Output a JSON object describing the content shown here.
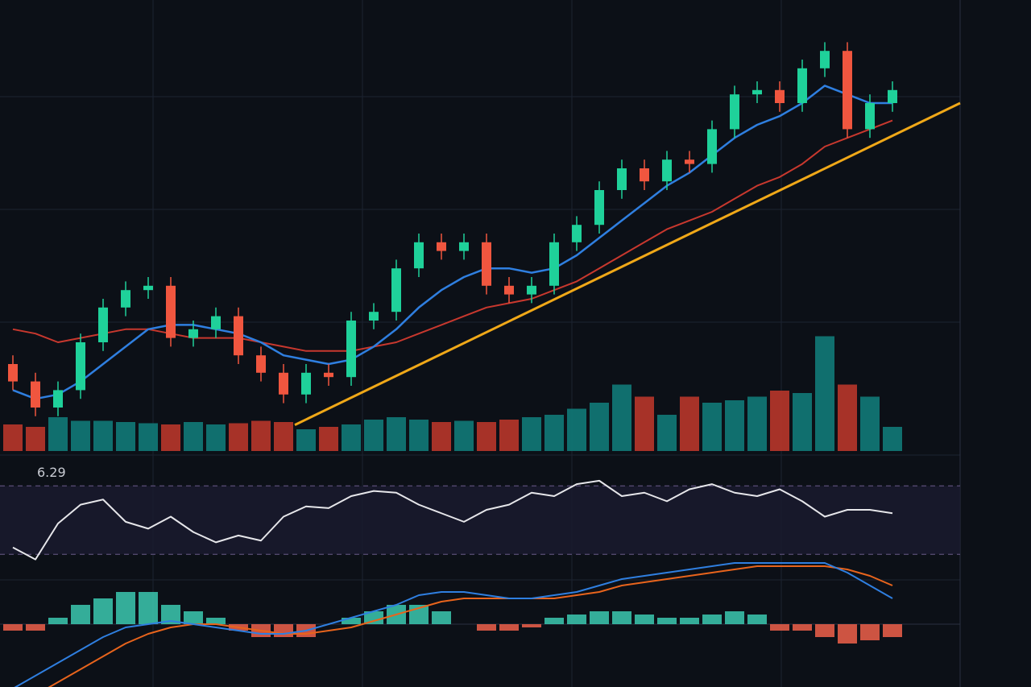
{
  "chart_data": {
    "type": "candlestick",
    "label": "6.29",
    "open": [
      20,
      16,
      10,
      14,
      25,
      33,
      37,
      38,
      26,
      28,
      31,
      22,
      18,
      13,
      18,
      17,
      30,
      32,
      42,
      48,
      46,
      48,
      38,
      36,
      38,
      48,
      52,
      60,
      65,
      62,
      67,
      66,
      74,
      82,
      83,
      80,
      88,
      92,
      74,
      80
    ],
    "high": [
      22,
      18,
      16,
      27,
      35,
      39,
      40,
      40,
      30,
      33,
      33,
      24,
      20,
      20,
      20,
      32,
      34,
      44,
      50,
      50,
      50,
      50,
      40,
      40,
      50,
      54,
      62,
      67,
      67,
      69,
      69,
      76,
      84,
      85,
      85,
      90,
      94,
      94,
      82,
      85
    ],
    "low": [
      14,
      8,
      8,
      12,
      23,
      31,
      35,
      24,
      24,
      26,
      20,
      16,
      11,
      11,
      15,
      15,
      28,
      30,
      40,
      44,
      44,
      36,
      34,
      34,
      36,
      46,
      50,
      58,
      60,
      60,
      64,
      64,
      72,
      80,
      78,
      78,
      86,
      72,
      72,
      78
    ],
    "close": [
      16,
      10,
      14,
      25,
      33,
      37,
      38,
      26,
      28,
      31,
      22,
      18,
      13,
      18,
      17,
      30,
      32,
      42,
      48,
      46,
      48,
      38,
      36,
      38,
      48,
      52,
      60,
      65,
      62,
      67,
      66,
      74,
      82,
      83,
      80,
      88,
      92,
      74,
      80,
      83
    ],
    "ylim": [
      0,
      100
    ],
    "up_color": "#1fd19a",
    "down_color": "#f0563f",
    "ma_fast": {
      "color": "#2f7fe0",
      "values": [
        14,
        12,
        13,
        16,
        20,
        24,
        28,
        29,
        29,
        28,
        27,
        25,
        22,
        21,
        20,
        21,
        24,
        28,
        33,
        37,
        40,
        42,
        42,
        41,
        42,
        45,
        49,
        53,
        57,
        61,
        64,
        68,
        72,
        75,
        77,
        80,
        84,
        82,
        80,
        80
      ]
    },
    "ma_slow": {
      "color": "#c8382e",
      "values": [
        28,
        27,
        25,
        26,
        27,
        28,
        28,
        27,
        26,
        26,
        26,
        25,
        24,
        23,
        23,
        23,
        24,
        25,
        27,
        29,
        31,
        33,
        34,
        35,
        37,
        39,
        42,
        45,
        48,
        51,
        53,
        55,
        58,
        61,
        63,
        66,
        70,
        72,
        74,
        76
      ]
    },
    "trendline": {
      "color": "#f0a818",
      "x": [
        12.5,
        42
      ],
      "values": [
        6,
        80
      ]
    },
    "volume": {
      "ylim": [
        0,
        100
      ],
      "values": [
        22,
        20,
        28,
        25,
        25,
        24,
        23,
        22,
        24,
        22,
        23,
        25,
        24,
        18,
        20,
        22,
        26,
        28,
        26,
        24,
        25,
        24,
        26,
        28,
        30,
        35,
        40,
        55,
        45,
        30,
        45,
        40,
        42,
        45,
        50,
        48,
        95,
        55,
        45,
        20
      ]
    },
    "rsi": {
      "ylim": [
        0,
        100
      ],
      "levels": [
        30,
        70
      ],
      "color": "#e6e6ea",
      "values": [
        34,
        27,
        48,
        59,
        62,
        49,
        45,
        52,
        43,
        37,
        41,
        38,
        52,
        58,
        57,
        64,
        67,
        66,
        59,
        54,
        49,
        56,
        59,
        66,
        64,
        71,
        73,
        64,
        66,
        61,
        68,
        71,
        66,
        64,
        68,
        61,
        52,
        56,
        56,
        54
      ]
    },
    "macd": {
      "ylim": [
        -10,
        10
      ],
      "histogram": [
        -1,
        -1,
        1,
        3,
        4,
        5,
        5,
        3,
        2,
        1,
        -1,
        -2,
        -2,
        -2,
        0,
        1,
        2,
        3,
        3,
        2,
        0,
        -1,
        -1,
        -0.5,
        1,
        1.5,
        2,
        2,
        1.5,
        1,
        1,
        1.5,
        2,
        1.5,
        -1,
        -1,
        -2,
        -3,
        -2.5,
        -2
      ],
      "line": {
        "color": "#2f7fe0",
        "values": [
          -10,
          -8,
          -6,
          -4,
          -2,
          -0.5,
          0,
          0.5,
          0,
          -0.5,
          -1,
          -1.5,
          -1.5,
          -1,
          0,
          1,
          2,
          3,
          4.5,
          5,
          5,
          4.5,
          4,
          4,
          4.5,
          5,
          6,
          7,
          7.5,
          8,
          8.5,
          9,
          9.5,
          9.5,
          9.5,
          9.5,
          9.5,
          8,
          6,
          4
        ]
      },
      "signal": {
        "color": "#e8641c",
        "values": [
          -12,
          -11,
          -9,
          -7,
          -5,
          -3,
          -1.5,
          -0.5,
          0,
          0,
          -0.5,
          -1,
          -1.5,
          -1.5,
          -1,
          -0.5,
          0.5,
          1.5,
          2.5,
          3.5,
          4,
          4,
          4,
          4,
          4,
          4.5,
          5,
          6,
          6.5,
          7,
          7.5,
          8,
          8.5,
          9,
          9,
          9,
          9,
          8.5,
          7.5,
          6
        ]
      }
    }
  }
}
